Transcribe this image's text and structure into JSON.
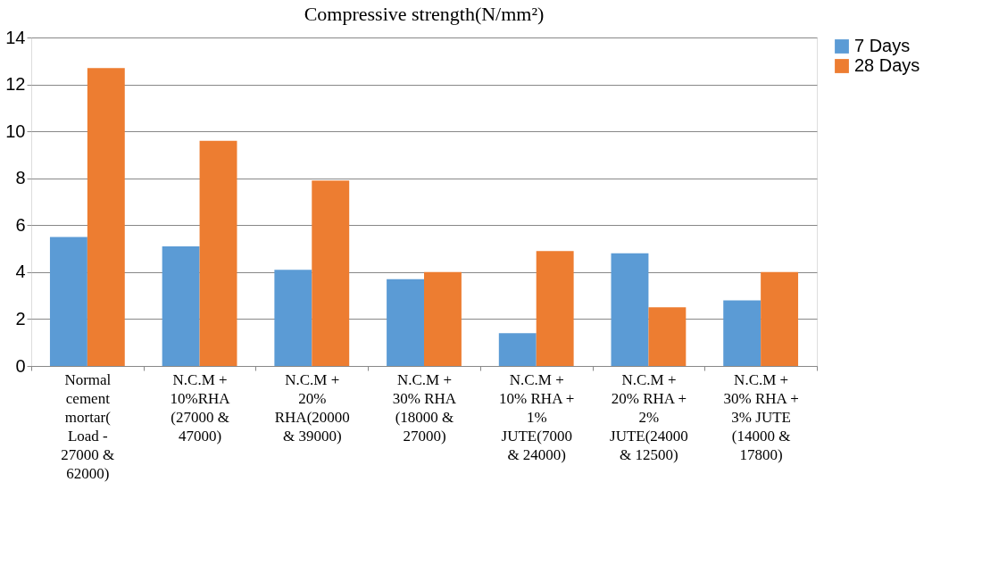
{
  "chart_data": {
    "type": "bar",
    "title": "Compressive strength(N/mm²)",
    "categories": [
      "Normal cement mortar( Load - 27000 & 62000)",
      "N.C.M + 10%RHA (27000 & 47000)",
      "N.C.M + 20% RHA(20000 & 39000)",
      "N.C.M + 30% RHA (18000 & 27000)",
      "N.C.M + 10% RHA + 1% JUTE(7000 & 24000)",
      "N.C.M + 20% RHA + 2% JUTE(24000 & 12500)",
      "N.C.M + 30% RHA + 3% JUTE (14000 & 17800)"
    ],
    "series": [
      {
        "name": "7 Days",
        "color": "#5b9bd5",
        "values": [
          5.5,
          5.1,
          4.1,
          3.7,
          1.4,
          4.8,
          2.8
        ]
      },
      {
        "name": "28 Days",
        "color": "#ed7d31",
        "values": [
          12.7,
          9.6,
          7.9,
          4.0,
          4.9,
          2.5,
          4.0
        ]
      }
    ],
    "ylim": [
      0,
      14
    ],
    "yticks": [
      0,
      2,
      4,
      6,
      8,
      10,
      12,
      14
    ],
    "grid": "y",
    "legend": "right"
  }
}
